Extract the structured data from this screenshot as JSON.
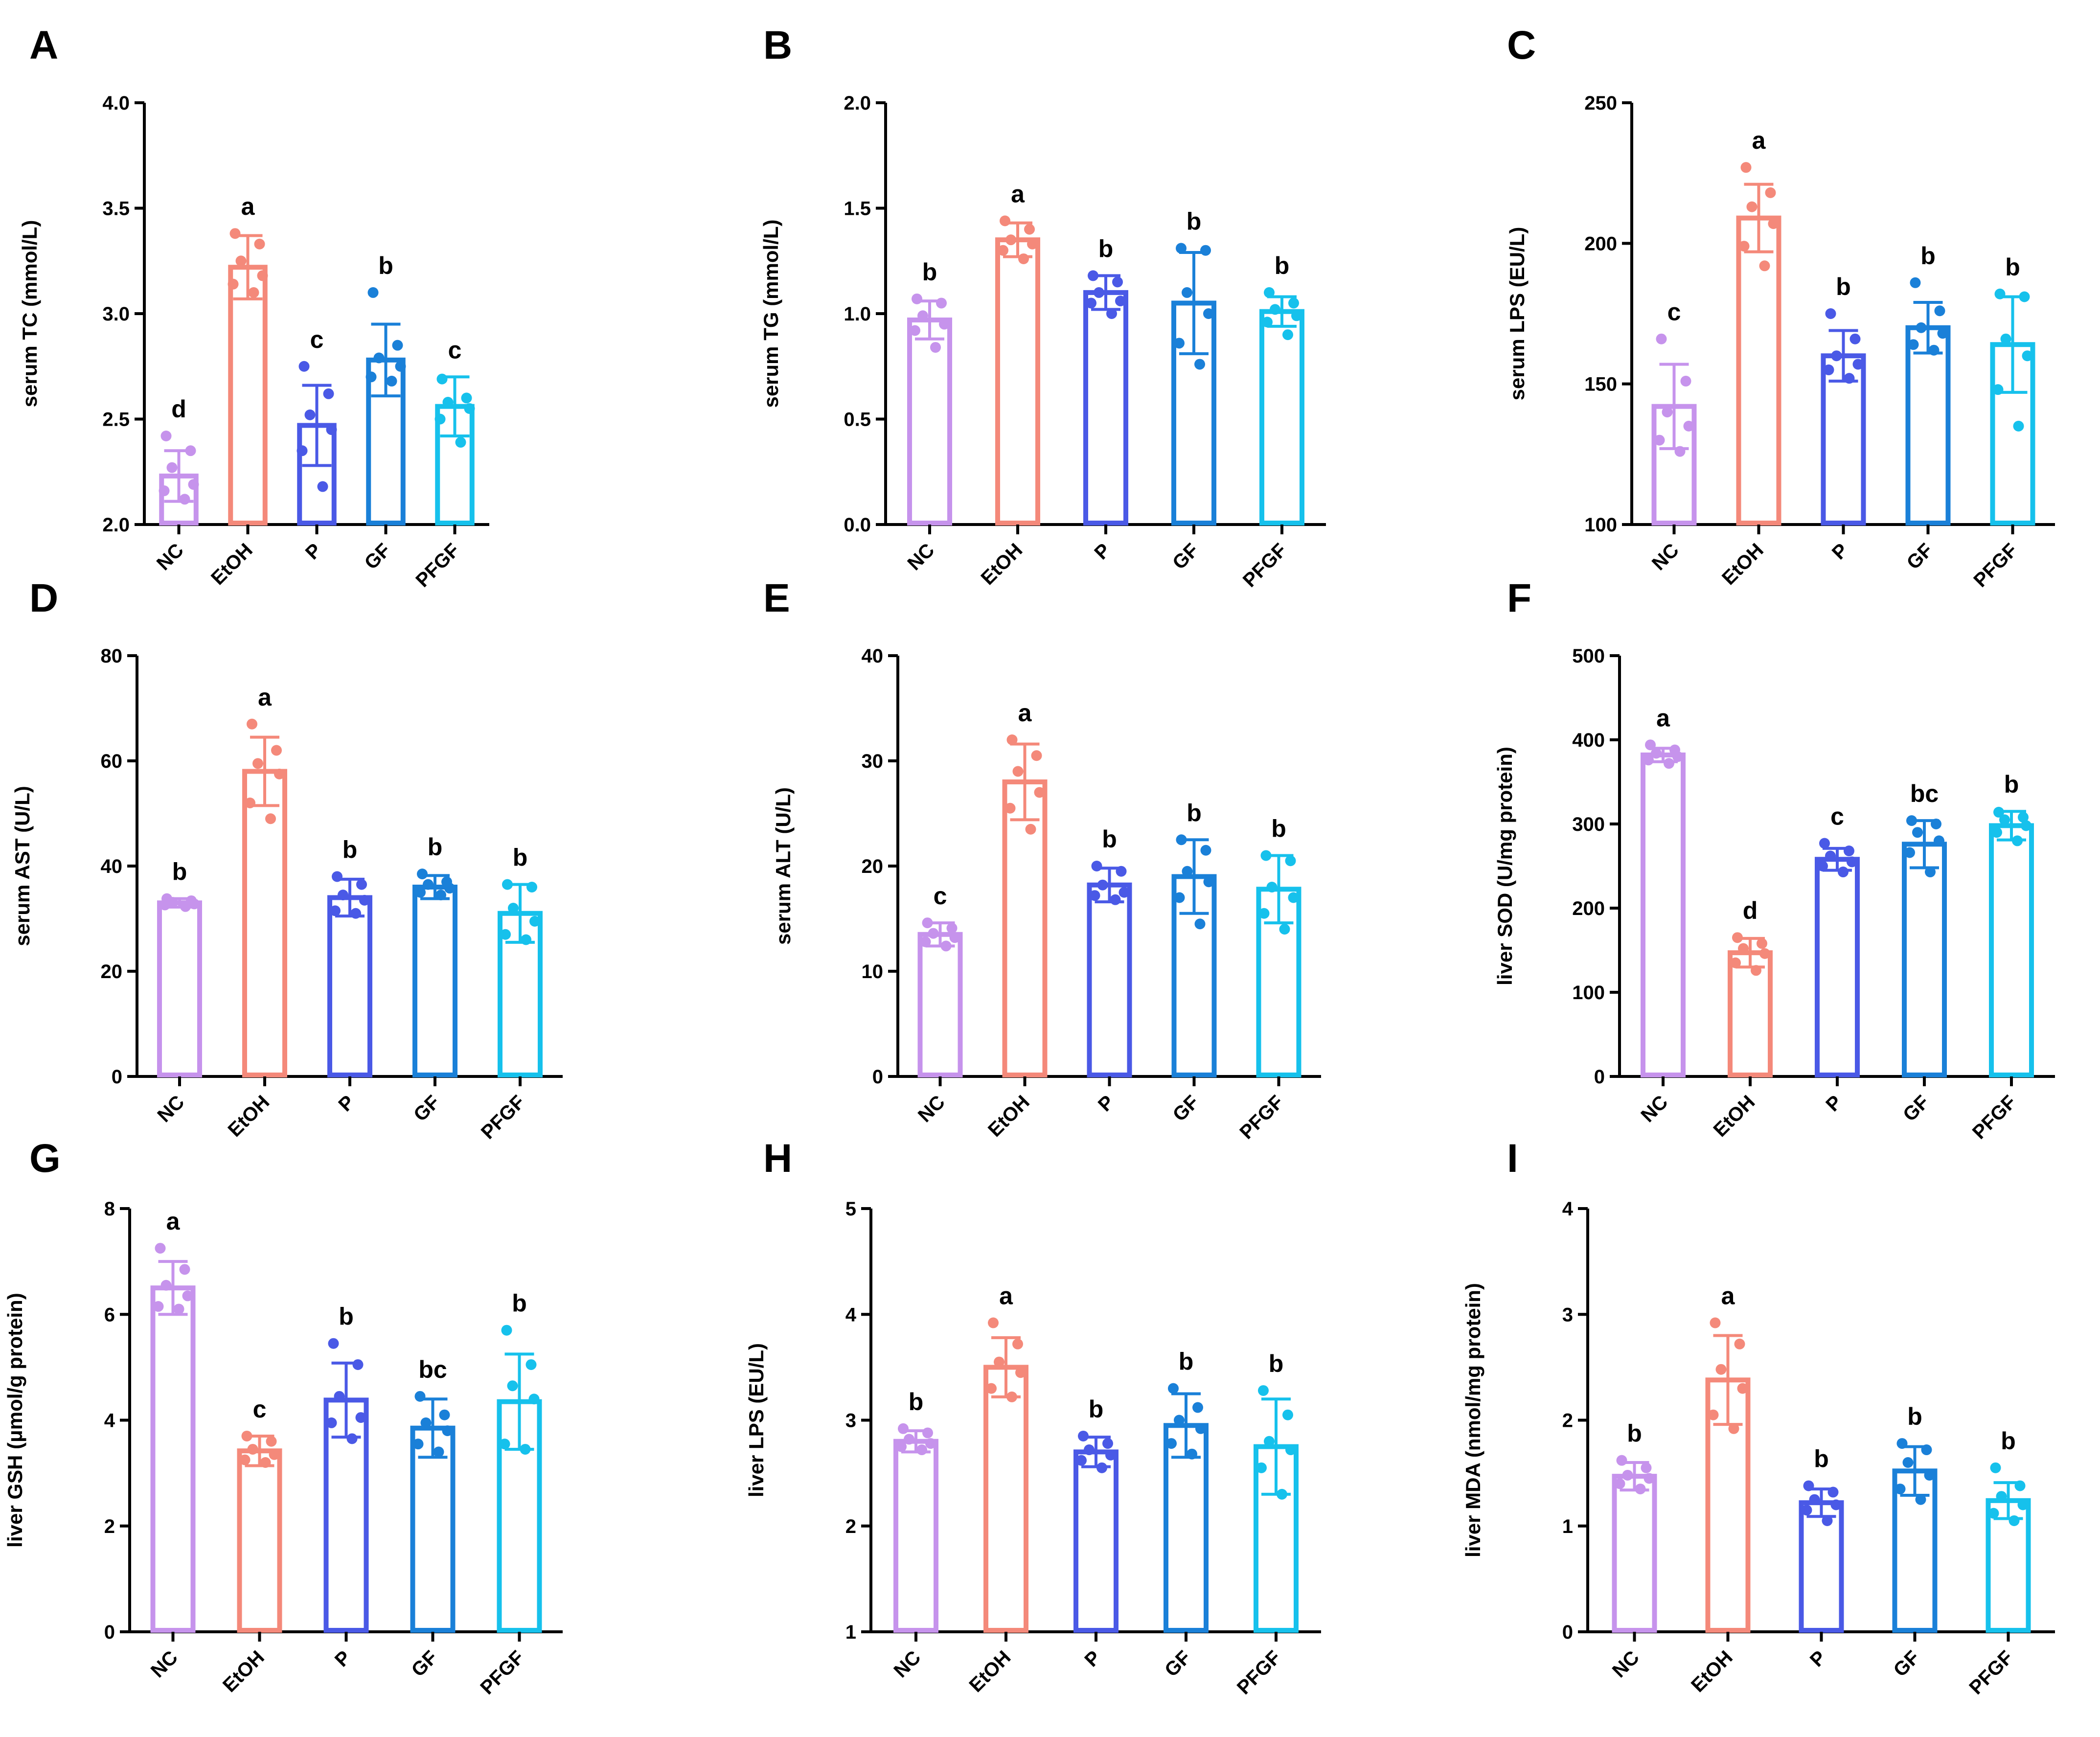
{
  "figure": {
    "categories": [
      "NC",
      "EtOH",
      "P",
      "GF",
      "PFGF"
    ],
    "colors": [
      "#c693ec",
      "#f4897a",
      "#4a59e6",
      "#1a80d8",
      "#16c1ec"
    ]
  },
  "chart_data": [
    {
      "type": "bar",
      "panel": "A",
      "ylabel": "serum TC (mmol/L)",
      "ylim": [
        2.0,
        4.0
      ],
      "yticks": [
        "2.0",
        "2.5",
        "3.0",
        "3.5",
        "4.0"
      ],
      "categories": [
        "NC",
        "EtOH",
        "P",
        "GF",
        "PFGF"
      ],
      "values": [
        2.23,
        3.22,
        2.47,
        2.78,
        2.56
      ],
      "sd": [
        0.12,
        0.15,
        0.19,
        0.17,
        0.14
      ],
      "letters": [
        "d",
        "a",
        "c",
        "b",
        "c"
      ],
      "points": [
        [
          2.42,
          2.35,
          2.27,
          2.19,
          2.16,
          2.12
        ],
        [
          3.38,
          3.33,
          3.25,
          3.18,
          3.14,
          3.1
        ],
        [
          2.75,
          2.62,
          2.52,
          2.45,
          2.35,
          2.18
        ],
        [
          3.1,
          2.85,
          2.79,
          2.75,
          2.7,
          2.68
        ],
        [
          2.69,
          2.6,
          2.58,
          2.55,
          2.5,
          2.39
        ]
      ]
    },
    {
      "type": "bar",
      "panel": "B",
      "ylabel": "serum TG (mmol/L)",
      "ylim": [
        0.0,
        2.0
      ],
      "yticks": [
        "0.0",
        "0.5",
        "1.0",
        "1.5",
        "2.0"
      ],
      "categories": [
        "NC",
        "EtOH",
        "P",
        "GF",
        "PFGF"
      ],
      "values": [
        0.97,
        1.35,
        1.1,
        1.05,
        1.01
      ],
      "sd": [
        0.09,
        0.08,
        0.08,
        0.24,
        0.07
      ],
      "letters": [
        "b",
        "a",
        "b",
        "b",
        "b"
      ],
      "points": [
        [
          1.07,
          1.05,
          0.99,
          0.95,
          0.92,
          0.84
        ],
        [
          1.44,
          1.4,
          1.35,
          1.33,
          1.3,
          1.26
        ],
        [
          1.18,
          1.15,
          1.1,
          1.06,
          1.05,
          1.0
        ],
        [
          1.31,
          1.3,
          1.1,
          1.0,
          0.86,
          0.76
        ],
        [
          1.1,
          1.05,
          1.02,
          0.99,
          0.96,
          0.9
        ]
      ]
    },
    {
      "type": "bar",
      "panel": "C",
      "ylabel": "serum LPS (EU/L)",
      "ylim": [
        100,
        250
      ],
      "yticks": [
        "100",
        "150",
        "200",
        "250"
      ],
      "categories": [
        "NC",
        "EtOH",
        "P",
        "GF",
        "PFGF"
      ],
      "values": [
        142,
        209,
        160,
        170,
        164
      ],
      "sd": [
        15,
        12,
        9,
        9,
        17
      ],
      "letters": [
        "c",
        "a",
        "b",
        "b",
        "b"
      ],
      "points": [
        [
          166,
          151,
          140,
          135,
          130,
          126
        ],
        [
          227,
          218,
          213,
          207,
          199,
          192
        ],
        [
          175,
          166,
          160,
          157,
          155,
          152
        ],
        [
          186,
          176,
          170,
          168,
          164,
          162
        ],
        [
          182,
          181,
          166,
          160,
          148,
          135
        ]
      ]
    },
    {
      "type": "bar",
      "panel": "D",
      "ylabel": "serum AST (U/L)",
      "ylim": [
        0,
        80
      ],
      "yticks": [
        "0",
        "20",
        "40",
        "60",
        "80"
      ],
      "categories": [
        "NC",
        "EtOH",
        "P",
        "GF",
        "PFGF"
      ],
      "values": [
        33,
        58,
        34,
        36,
        31
      ],
      "sd": [
        0.8,
        6.5,
        3.5,
        2.2,
        5.5
      ],
      "letters": [
        "b",
        "a",
        "b",
        "b",
        "b"
      ],
      "points": [
        [
          33.8,
          33.4,
          33.1,
          32.8,
          32.6,
          32.3
        ],
        [
          67.0,
          62.0,
          59.5,
          57.5,
          52.0,
          49.0
        ],
        [
          38.0,
          36.5,
          34.5,
          33.5,
          31.5,
          31.0
        ],
        [
          38.5,
          37.0,
          36.5,
          35.8,
          35.0,
          34.5
        ],
        [
          36.5,
          36.0,
          32.0,
          29.5,
          27.0,
          26.0
        ]
      ]
    },
    {
      "type": "bar",
      "panel": "E",
      "ylabel": "serum ALT (U/L)",
      "ylim": [
        0,
        40
      ],
      "yticks": [
        "0",
        "10",
        "20",
        "30",
        "40"
      ],
      "categories": [
        "NC",
        "EtOH",
        "P",
        "GF",
        "PFGF"
      ],
      "values": [
        13.5,
        28,
        18.2,
        19,
        17.8
      ],
      "sd": [
        1.1,
        3.6,
        1.6,
        3.5,
        3.2
      ],
      "letters": [
        "c",
        "a",
        "b",
        "b",
        "b"
      ],
      "points": [
        [
          14.6,
          14.1,
          13.6,
          13.2,
          12.8,
          12.4
        ],
        [
          32.0,
          30.5,
          29.0,
          27.0,
          25.5,
          23.5
        ],
        [
          20.0,
          19.5,
          18.2,
          17.5,
          17.2,
          16.8
        ],
        [
          22.5,
          21.5,
          19.5,
          18.5,
          17.0,
          14.5
        ],
        [
          21.0,
          20.5,
          18.0,
          17.0,
          15.5,
          14.0
        ]
      ]
    },
    {
      "type": "bar",
      "panel": "F",
      "ylabel": "liver SOD (U/mg protein)",
      "ylim": [
        0,
        500
      ],
      "yticks": [
        "0",
        "100",
        "200",
        "300",
        "400",
        "500"
      ],
      "categories": [
        "NC",
        "EtOH",
        "P",
        "GF",
        "PFGF"
      ],
      "values": [
        382,
        147,
        258,
        276,
        298
      ],
      "sd": [
        8,
        17,
        13,
        28,
        17
      ],
      "letters": [
        "a",
        "d",
        "c",
        "bc",
        "b"
      ],
      "points": [
        [
          394,
          388,
          384,
          380,
          376,
          372
        ],
        [
          165,
          158,
          152,
          146,
          135,
          126
        ],
        [
          277,
          268,
          262,
          255,
          250,
          243
        ],
        [
          304,
          300,
          290,
          280,
          266,
          243
        ],
        [
          314,
          308,
          305,
          298,
          290,
          280
        ]
      ]
    },
    {
      "type": "bar",
      "panel": "G",
      "ylabel": "liver GSH (μmol/g protein)",
      "ylim": [
        0,
        8
      ],
      "yticks": [
        "0",
        "2",
        "4",
        "6",
        "8"
      ],
      "categories": [
        "NC",
        "EtOH",
        "P",
        "GF",
        "PFGF"
      ],
      "values": [
        6.5,
        3.42,
        4.38,
        3.85,
        4.35
      ],
      "sd": [
        0.5,
        0.28,
        0.7,
        0.55,
        0.9
      ],
      "letters": [
        "a",
        "c",
        "b",
        "bc",
        "b"
      ],
      "points": [
        [
          7.25,
          6.85,
          6.55,
          6.35,
          6.15,
          6.1
        ],
        [
          3.7,
          3.6,
          3.45,
          3.35,
          3.25,
          3.2
        ],
        [
          5.45,
          5.05,
          4.45,
          4.05,
          3.95,
          3.65
        ],
        [
          4.45,
          4.1,
          3.95,
          3.8,
          3.55,
          3.4
        ],
        [
          5.7,
          5.05,
          4.65,
          4.4,
          3.55,
          3.45
        ]
      ]
    },
    {
      "type": "bar",
      "panel": "H",
      "ylabel": "liver LPS (EU/L)",
      "ylim": [
        1,
        5
      ],
      "yticks": [
        "1",
        "2",
        "3",
        "4",
        "5"
      ],
      "categories": [
        "NC",
        "EtOH",
        "P",
        "GF",
        "PFGF"
      ],
      "values": [
        2.8,
        3.5,
        2.7,
        2.95,
        2.75
      ],
      "sd": [
        0.1,
        0.28,
        0.14,
        0.3,
        0.45
      ],
      "letters": [
        "b",
        "a",
        "b",
        "b",
        "b"
      ],
      "points": [
        [
          2.92,
          2.88,
          2.82,
          2.78,
          2.75,
          2.72
        ],
        [
          3.92,
          3.72,
          3.55,
          3.45,
          3.3,
          3.22
        ],
        [
          2.85,
          2.78,
          2.72,
          2.67,
          2.62,
          2.55
        ],
        [
          3.3,
          3.12,
          3.0,
          2.92,
          2.78,
          2.68
        ],
        [
          3.28,
          3.05,
          2.8,
          2.72,
          2.55,
          2.3
        ]
      ]
    },
    {
      "type": "bar",
      "panel": "I",
      "ylabel": "liver MDA (nmol/mg protein)",
      "ylim": [
        0,
        4
      ],
      "yticks": [
        "0",
        "1",
        "2",
        "3",
        "4"
      ],
      "categories": [
        "NC",
        "EtOH",
        "P",
        "GF",
        "PFGF"
      ],
      "values": [
        1.47,
        2.38,
        1.22,
        1.52,
        1.24
      ],
      "sd": [
        0.13,
        0.42,
        0.13,
        0.23,
        0.17
      ],
      "letters": [
        "b",
        "a",
        "b",
        "b",
        "b"
      ],
      "points": [
        [
          1.62,
          1.55,
          1.48,
          1.45,
          1.4,
          1.35
        ],
        [
          2.92,
          2.72,
          2.48,
          2.3,
          2.05,
          1.92
        ],
        [
          1.38,
          1.32,
          1.25,
          1.2,
          1.15,
          1.05
        ],
        [
          1.78,
          1.72,
          1.6,
          1.48,
          1.35,
          1.25
        ],
        [
          1.55,
          1.38,
          1.28,
          1.2,
          1.12,
          1.05
        ]
      ]
    }
  ]
}
